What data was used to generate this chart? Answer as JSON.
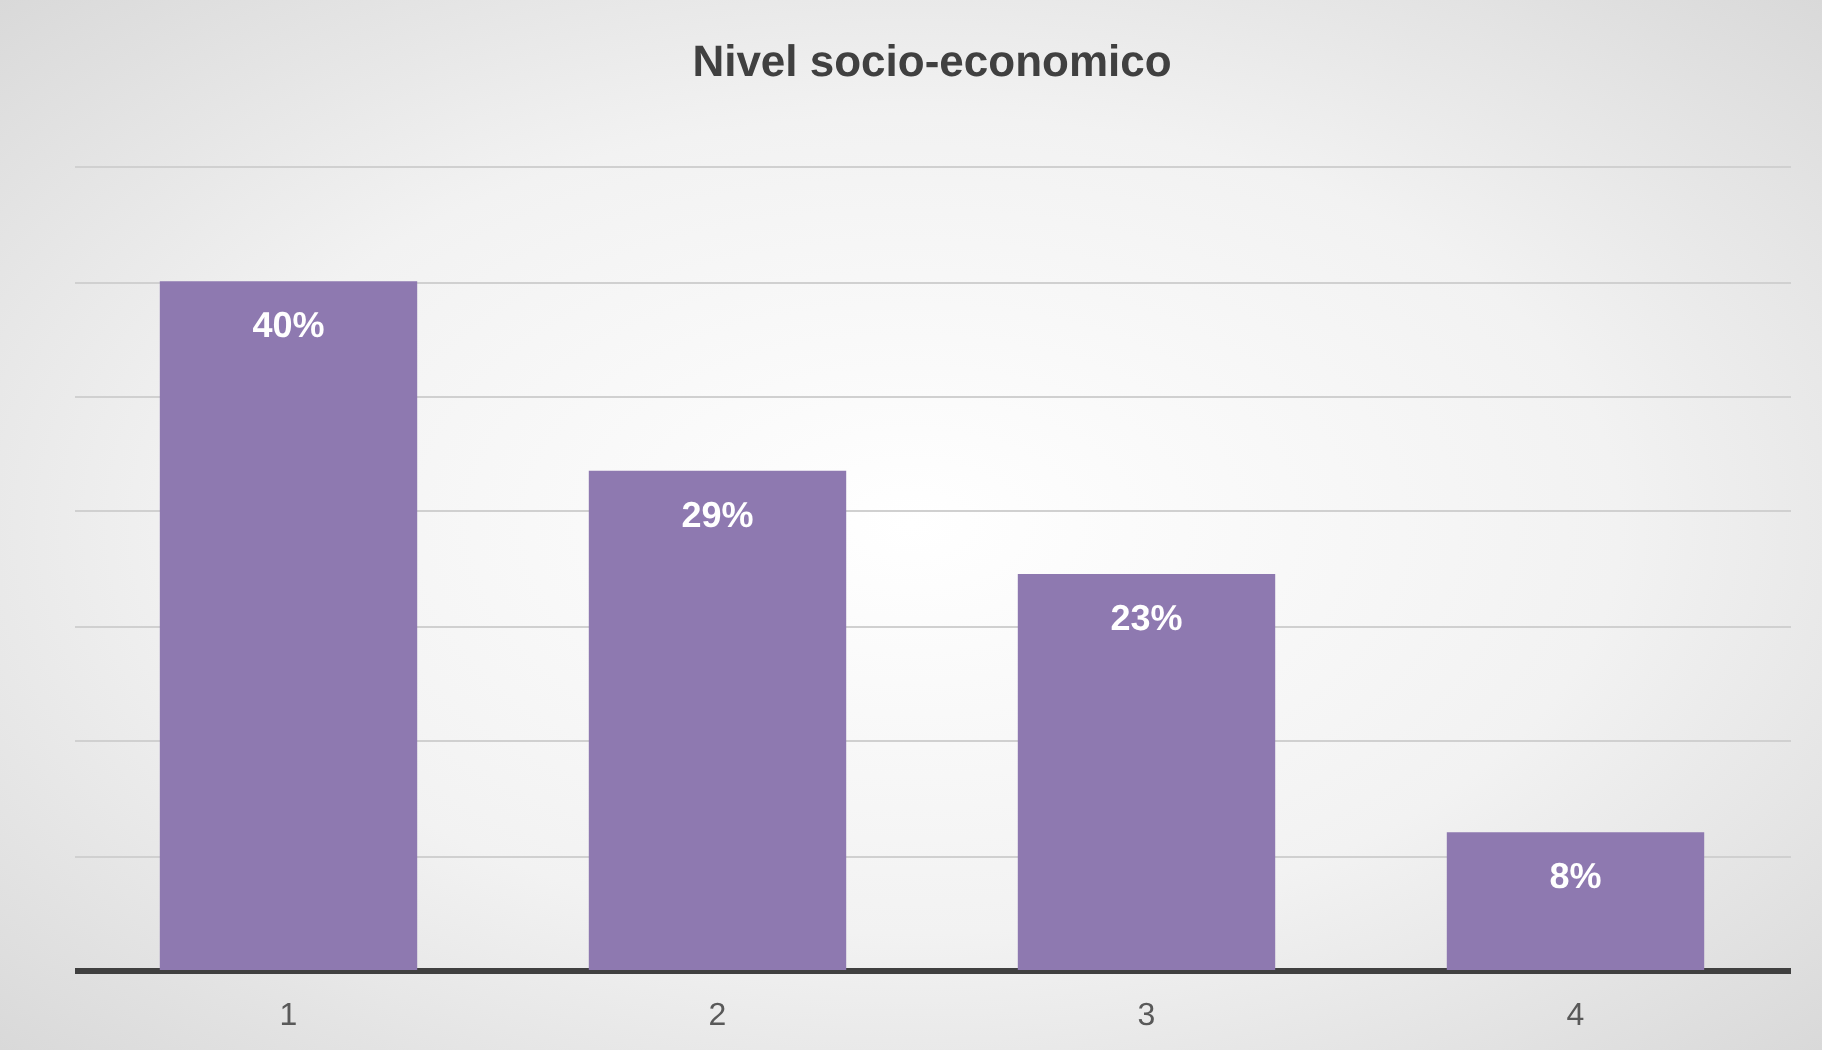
{
  "chart_data": {
    "type": "bar",
    "title": "Nivel socio-economico",
    "categories": [
      "1",
      "2",
      "3",
      "4"
    ],
    "values": [
      40,
      29,
      23,
      8
    ],
    "value_labels": [
      "40%",
      "29%",
      "23%",
      "8%"
    ],
    "color": "#8e79b0",
    "ylim": [
      0,
      46.7
    ],
    "yticks": [
      {
        "value": 0,
        "label": null
      },
      {
        "value": 6.67,
        "label": null
      },
      {
        "value": 13.33,
        "label": null
      },
      {
        "value": 20,
        "label": null
      },
      {
        "value": 26.67,
        "label": null
      },
      {
        "value": 33.33,
        "label": null
      },
      {
        "value": 40,
        "label": null
      },
      {
        "value": 46.67,
        "label": null
      }
    ],
    "grid": true,
    "tick_labels": "x"
  }
}
